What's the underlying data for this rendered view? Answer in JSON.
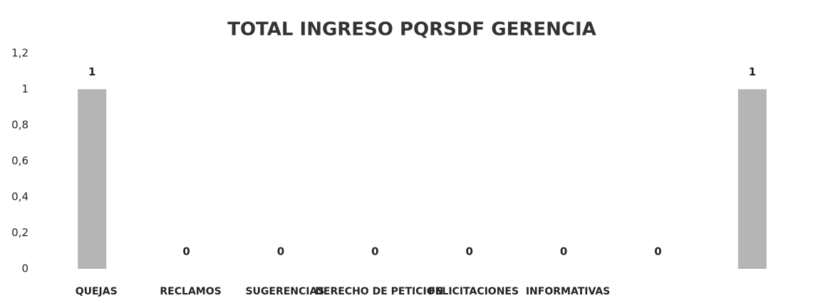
{
  "chart_data": {
    "type": "bar",
    "title": "TOTAL INGRESO PQRSDF GERENCIA",
    "categories": [
      "QUEJAS",
      "RECLAMOS",
      "SUGERENCIAS",
      "DERECHO DE PETICION",
      "FELICITACIONES",
      "INFORMATIVAS",
      null,
      null
    ],
    "values": [
      1,
      0,
      0,
      0,
      0,
      0,
      0,
      1
    ],
    "color": "#b5b5b5",
    "ylim": [
      0,
      1.2
    ],
    "yticks": [
      0,
      {
        "value": 0.2,
        "label": "0,2"
      },
      {
        "value": 0.4,
        "label": "0,4"
      },
      {
        "value": 0.6,
        "label": "0,6"
      },
      {
        "value": 0.8,
        "label": "0,8"
      },
      1,
      {
        "value": 1.2,
        "label": "1,2"
      }
    ],
    "grid": false
  }
}
